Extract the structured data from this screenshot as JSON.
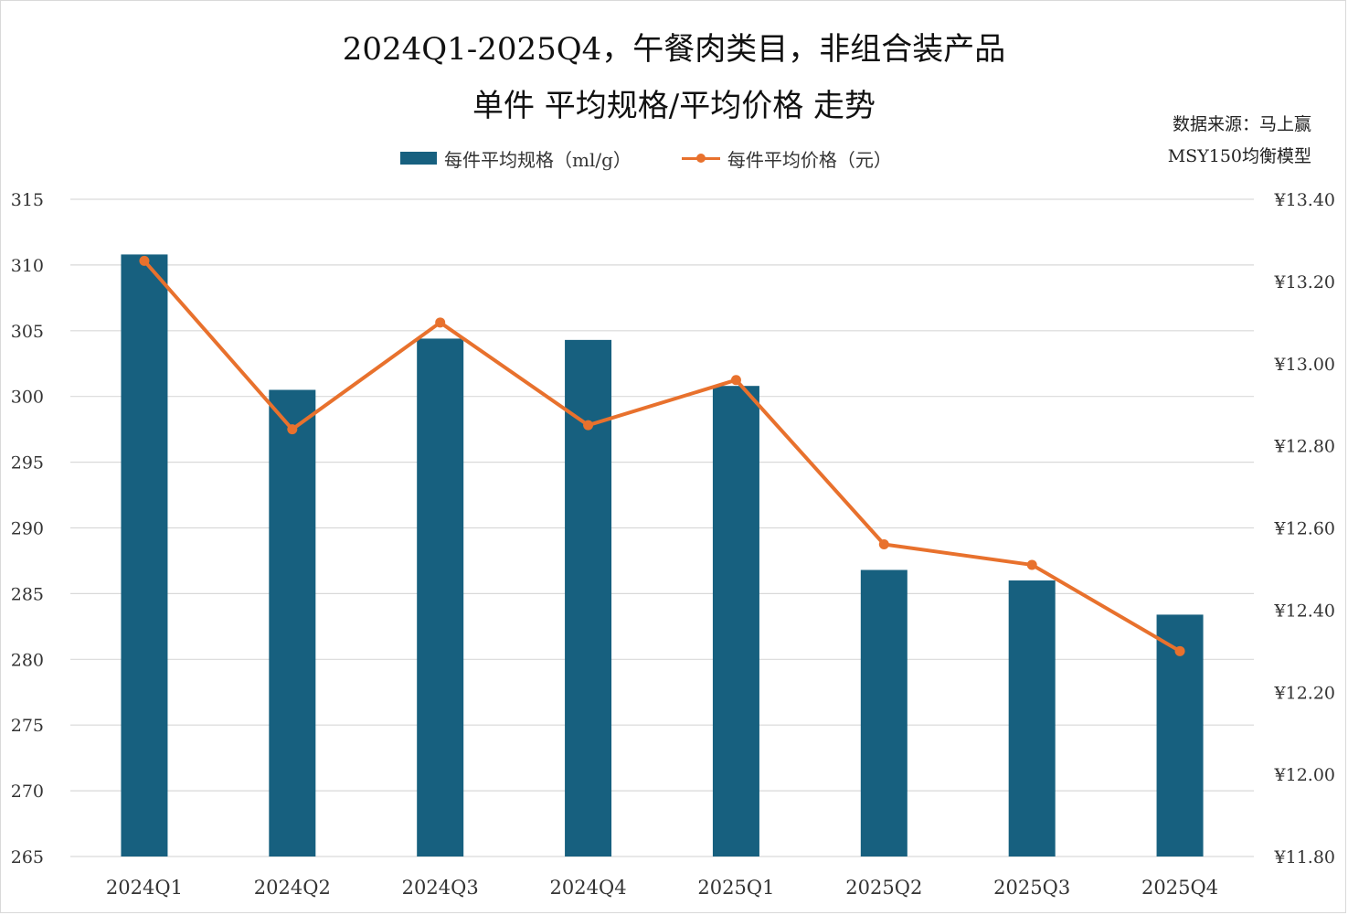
{
  "title": {
    "line1": "2024Q1-2025Q4，午餐肉类目，非组合装产品",
    "line2": "单件 平均规格/平均价格 走势"
  },
  "source": {
    "line1": "数据来源：马上赢",
    "line2": "MSY150均衡模型"
  },
  "colors": {
    "bar": "#17607f",
    "line": "#e8712d",
    "grid": "#d9d9d9"
  },
  "chart_data": {
    "type": "bar+line",
    "categories": [
      "2024Q1",
      "2024Q2",
      "2024Q3",
      "2024Q4",
      "2025Q1",
      "2025Q2",
      "2025Q3",
      "2025Q4"
    ],
    "series": [
      {
        "name": "每件平均规格（ml/g）",
        "type": "bar",
        "axis": "left",
        "values": [
          310.8,
          300.5,
          304.4,
          304.3,
          300.8,
          286.8,
          286.0,
          283.4
        ]
      },
      {
        "name": "每件平均价格（元）",
        "type": "line",
        "axis": "right",
        "values": [
          13.25,
          12.84,
          13.1,
          12.85,
          12.96,
          12.56,
          12.51,
          12.3
        ]
      }
    ],
    "y_left": {
      "min": 265,
      "max": 315,
      "step": 5,
      "ticks": [
        "315",
        "310",
        "305",
        "300",
        "295",
        "290",
        "285",
        "280",
        "275",
        "270",
        "265"
      ]
    },
    "y_right": {
      "min": 11.8,
      "max": 13.4,
      "step": 0.2,
      "ticks": [
        "¥13.40",
        "¥13.20",
        "¥13.00",
        "¥12.80",
        "¥12.60",
        "¥12.40",
        "¥12.20",
        "¥12.00",
        "¥11.80"
      ]
    },
    "grid": true,
    "legend_position": "top"
  }
}
